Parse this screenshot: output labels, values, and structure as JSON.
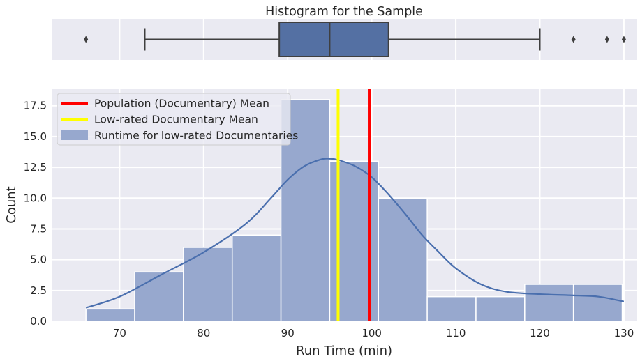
{
  "colors": {
    "panel_bg": "#EAEAF2",
    "grid": "#FFFFFF",
    "box_fill": "#5470A3",
    "box_line": "#3F3F3F",
    "hist_fill": "#97A8CE",
    "kde_line": "#4A6FAE",
    "pop_mean": "#FF0000",
    "sample_mean": "#FFFF00",
    "text": "#262626"
  },
  "chart_data": [
    {
      "type": "box",
      "title": "Histogram for the Sample",
      "xlim": [
        62,
        131.5
      ],
      "grid_x": [
        70,
        80,
        90,
        100,
        110,
        120,
        130
      ],
      "whisker_low": 73,
      "q1": 89,
      "median": 95,
      "q3": 102,
      "whisker_high": 120,
      "outliers": [
        66,
        124,
        128,
        130
      ]
    },
    {
      "type": "histogram",
      "xlabel": "Run Time (min)",
      "ylabel": "Count",
      "xlim": [
        62,
        131.5
      ],
      "ylim": [
        0,
        18.9
      ],
      "xticks": [
        70,
        80,
        90,
        100,
        110,
        120,
        130
      ],
      "yticks": [
        0.0,
        2.5,
        5.0,
        7.5,
        10.0,
        12.5,
        15.0,
        17.5
      ],
      "ytick_labels": [
        "0.0",
        "2.5",
        "5.0",
        "7.5",
        "10.0",
        "12.5",
        "15.0",
        "17.5"
      ],
      "bins": [
        {
          "x0": 66.0,
          "x1": 71.8,
          "count": 1
        },
        {
          "x0": 71.8,
          "x1": 77.6,
          "count": 4
        },
        {
          "x0": 77.6,
          "x1": 83.4,
          "count": 6
        },
        {
          "x0": 83.4,
          "x1": 89.2,
          "count": 7
        },
        {
          "x0": 89.2,
          "x1": 95.0,
          "count": 18
        },
        {
          "x0": 95.0,
          "x1": 100.8,
          "count": 13
        },
        {
          "x0": 100.8,
          "x1": 106.6,
          "count": 10
        },
        {
          "x0": 106.6,
          "x1": 112.4,
          "count": 2
        },
        {
          "x0": 112.4,
          "x1": 118.2,
          "count": 2
        },
        {
          "x0": 118.2,
          "x1": 124.0,
          "count": 3
        },
        {
          "x0": 124.0,
          "x1": 129.8,
          "count": 3
        }
      ],
      "kde": {
        "x": [
          66,
          70,
          75,
          80,
          85,
          88,
          90,
          92,
          94,
          95,
          96,
          98,
          100,
          102,
          104,
          106,
          108,
          110,
          113,
          116,
          120,
          124,
          127,
          130
        ],
        "y": [
          1.1,
          2.0,
          3.8,
          5.6,
          7.9,
          10.0,
          11.5,
          12.6,
          13.15,
          13.2,
          13.1,
          12.6,
          11.7,
          10.3,
          8.7,
          7.0,
          5.6,
          4.3,
          3.0,
          2.4,
          2.2,
          2.1,
          2.0,
          1.6
        ]
      },
      "vlines": [
        {
          "name": "Population (Documentary) Mean",
          "x": 99.7,
          "color": "#FF0000"
        },
        {
          "name": "Low-rated Documentary Mean",
          "x": 96.0,
          "color": "#FFFF00"
        }
      ],
      "legend": {
        "placement": "upper-left",
        "entries": [
          {
            "label": "Population (Documentary) Mean",
            "kind": "line",
            "color": "#FF0000"
          },
          {
            "label": "Low-rated Documentary Mean",
            "kind": "line",
            "color": "#FFFF00"
          },
          {
            "label": "Runtime for low-rated Documentaries",
            "kind": "patch",
            "color": "#97A8CE"
          }
        ]
      }
    }
  ]
}
